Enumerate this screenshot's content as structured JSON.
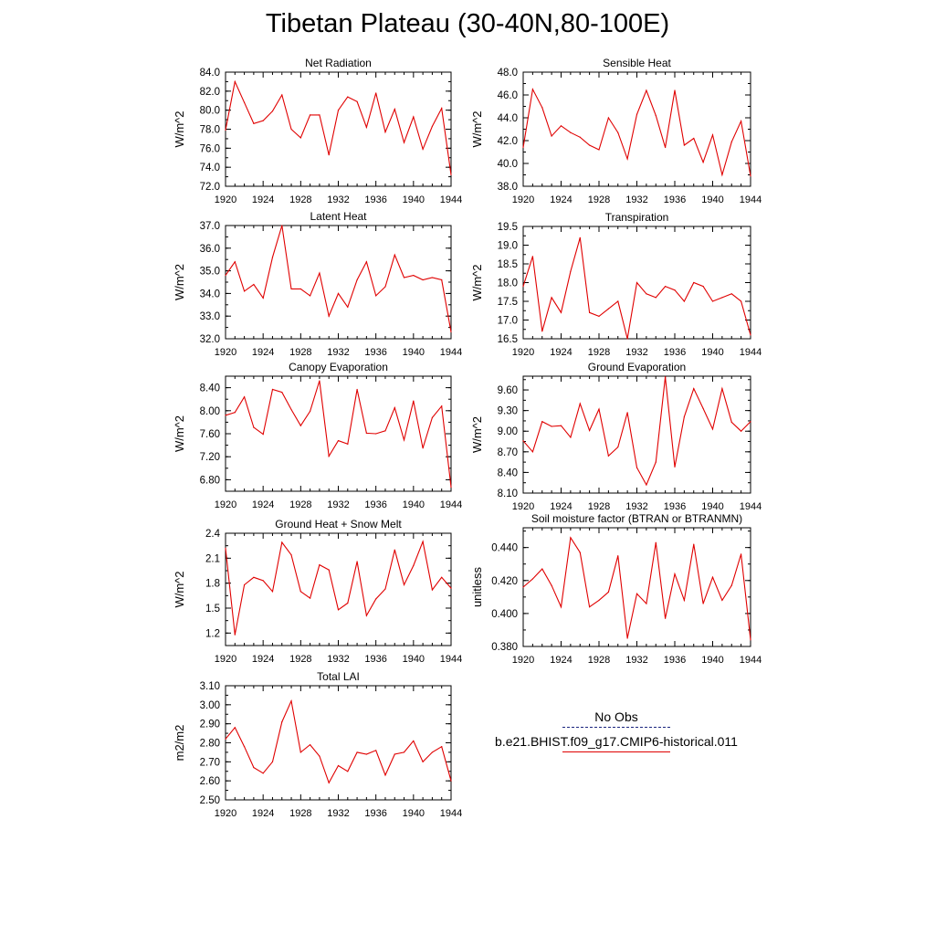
{
  "title": "Tibetan Plateau (30-40N,80-100E)",
  "colors": {
    "model": "#e00000",
    "obs": "#1a237e",
    "axis": "#000000"
  },
  "legend": {
    "obs_label": "No Obs",
    "model_label": "b.e21.BHIST.f09_g17.CMIP6-historical.011"
  },
  "chart_data": [
    {
      "type": "line",
      "title": "Net Radiation",
      "ylabel": "W/m^2",
      "xlim": [
        1920,
        1944
      ],
      "ylim": [
        72.0,
        84.0
      ],
      "xticks": [
        1920,
        1924,
        1928,
        1932,
        1936,
        1940,
        1944
      ],
      "yticks": [
        "72.0",
        "74.0",
        "76.0",
        "78.0",
        "80.0",
        "82.0",
        "84.0"
      ],
      "series": [
        {
          "x": [
            1920,
            1921,
            1922,
            1923,
            1924,
            1925,
            1926,
            1927,
            1928,
            1929,
            1930,
            1931,
            1932,
            1933,
            1934,
            1935,
            1936,
            1937,
            1938,
            1939,
            1940,
            1941,
            1942,
            1943,
            1944
          ],
          "values": [
            77.9,
            83.0,
            80.8,
            78.6,
            78.9,
            79.9,
            81.6,
            78.0,
            77.1,
            79.5,
            79.5,
            75.3,
            80.0,
            81.4,
            80.9,
            78.2,
            81.8,
            77.7,
            80.1,
            76.6,
            79.3,
            75.9,
            78.3,
            80.2,
            73.2
          ]
        }
      ]
    },
    {
      "type": "line",
      "title": "Sensible Heat",
      "ylabel": "W/m^2",
      "xlim": [
        1920,
        1944
      ],
      "ylim": [
        38.0,
        48.0
      ],
      "xticks": [
        1920,
        1924,
        1928,
        1932,
        1936,
        1940,
        1944
      ],
      "yticks": [
        "38.0",
        "40.0",
        "42.0",
        "44.0",
        "46.0",
        "48.0"
      ],
      "series": [
        {
          "x": [
            1920,
            1921,
            1922,
            1923,
            1924,
            1925,
            1926,
            1927,
            1928,
            1929,
            1930,
            1931,
            1932,
            1933,
            1934,
            1935,
            1936,
            1937,
            1938,
            1939,
            1940,
            1941,
            1942,
            1943,
            1944
          ],
          "values": [
            41.4,
            46.5,
            44.9,
            42.4,
            43.3,
            42.7,
            42.3,
            41.6,
            41.2,
            44.0,
            42.7,
            40.4,
            44.3,
            46.4,
            44.2,
            41.4,
            46.4,
            41.6,
            42.2,
            40.1,
            42.5,
            39.0,
            41.9,
            43.7,
            38.9
          ]
        }
      ]
    },
    {
      "type": "line",
      "title": "Latent Heat",
      "ylabel": "W/m^2",
      "xlim": [
        1920,
        1944
      ],
      "ylim": [
        32.0,
        37.0
      ],
      "xticks": [
        1920,
        1924,
        1928,
        1932,
        1936,
        1940,
        1944
      ],
      "yticks": [
        "32.0",
        "33.0",
        "34.0",
        "35.0",
        "36.0",
        "37.0"
      ],
      "series": [
        {
          "x": [
            1920,
            1921,
            1922,
            1923,
            1924,
            1925,
            1926,
            1927,
            1928,
            1929,
            1930,
            1931,
            1932,
            1933,
            1934,
            1935,
            1936,
            1937,
            1938,
            1939,
            1940,
            1941,
            1942,
            1943,
            1944
          ],
          "values": [
            34.8,
            35.4,
            34.1,
            34.4,
            33.8,
            35.6,
            37.0,
            34.2,
            34.2,
            33.9,
            34.9,
            33.0,
            34.0,
            33.4,
            34.6,
            35.4,
            33.9,
            34.3,
            35.7,
            34.7,
            34.8,
            34.6,
            34.7,
            34.6,
            32.3
          ]
        }
      ]
    },
    {
      "type": "line",
      "title": "Transpiration",
      "ylabel": "W/m^2",
      "xlim": [
        1920,
        1944
      ],
      "ylim": [
        16.5,
        19.5
      ],
      "xticks": [
        1920,
        1924,
        1928,
        1932,
        1936,
        1940,
        1944
      ],
      "yticks": [
        "16.5",
        "17.0",
        "17.5",
        "18.0",
        "18.5",
        "19.0",
        "19.5"
      ],
      "series": [
        {
          "x": [
            1920,
            1921,
            1922,
            1923,
            1924,
            1925,
            1926,
            1927,
            1928,
            1929,
            1930,
            1931,
            1932,
            1933,
            1934,
            1935,
            1936,
            1937,
            1938,
            1939,
            1940,
            1941,
            1942,
            1943,
            1944
          ],
          "values": [
            17.9,
            18.7,
            16.7,
            17.6,
            17.2,
            18.3,
            19.2,
            17.2,
            17.1,
            17.3,
            17.5,
            16.5,
            18.0,
            17.7,
            17.6,
            17.9,
            17.8,
            17.5,
            18.0,
            17.9,
            17.5,
            17.6,
            17.7,
            17.5,
            16.6
          ]
        }
      ]
    },
    {
      "type": "line",
      "title": "Canopy Evaporation",
      "ylabel": "W/m^2",
      "xlim": [
        1920,
        1944
      ],
      "ylim": [
        6.6,
        8.6
      ],
      "xticks": [
        1920,
        1924,
        1928,
        1932,
        1936,
        1940,
        1944
      ],
      "yticks": [
        "6.80",
        "7.20",
        "7.60",
        "8.00",
        "8.40"
      ],
      "series": [
        {
          "x": [
            1920,
            1921,
            1922,
            1923,
            1924,
            1925,
            1926,
            1927,
            1928,
            1929,
            1930,
            1931,
            1932,
            1933,
            1934,
            1935,
            1936,
            1937,
            1938,
            1939,
            1940,
            1941,
            1942,
            1943,
            1944
          ],
          "values": [
            7.92,
            7.97,
            8.24,
            7.71,
            7.59,
            8.37,
            8.32,
            8.02,
            7.74,
            7.99,
            8.52,
            7.21,
            7.48,
            7.42,
            8.37,
            7.61,
            7.6,
            7.65,
            8.05,
            7.49,
            8.17,
            7.35,
            7.88,
            8.08,
            6.67
          ]
        }
      ]
    },
    {
      "type": "line",
      "title": "Ground Evaporation",
      "ylabel": "W/m^2",
      "xlim": [
        1920,
        1944
      ],
      "ylim": [
        8.1,
        9.8
      ],
      "xticks": [
        1920,
        1924,
        1928,
        1932,
        1936,
        1940,
        1944
      ],
      "yticks": [
        "8.10",
        "8.40",
        "8.70",
        "9.00",
        "9.30",
        "9.60"
      ],
      "series": [
        {
          "x": [
            1920,
            1921,
            1922,
            1923,
            1924,
            1925,
            1926,
            1927,
            1928,
            1929,
            1930,
            1931,
            1932,
            1933,
            1934,
            1935,
            1936,
            1937,
            1938,
            1939,
            1940,
            1941,
            1942,
            1943,
            1944
          ],
          "values": [
            8.86,
            8.7,
            9.14,
            9.07,
            9.08,
            8.91,
            9.4,
            9.01,
            9.32,
            8.64,
            8.77,
            9.27,
            8.47,
            8.22,
            8.55,
            9.79,
            8.48,
            9.21,
            9.62,
            9.33,
            9.03,
            9.62,
            9.13,
            9.0,
            9.14
          ]
        }
      ]
    },
    {
      "type": "line",
      "title": "Ground Heat + Snow Melt",
      "ylabel": "W/m^2",
      "xlim": [
        1920,
        1944
      ],
      "ylim": [
        1.05,
        2.4
      ],
      "xticks": [
        1920,
        1924,
        1928,
        1932,
        1936,
        1940,
        1944
      ],
      "yticks": [
        "1.2",
        "1.5",
        "1.8",
        "2.1",
        "2.4"
      ],
      "series": [
        {
          "x": [
            1920,
            1921,
            1922,
            1923,
            1924,
            1925,
            1926,
            1927,
            1928,
            1929,
            1930,
            1931,
            1932,
            1933,
            1934,
            1935,
            1936,
            1937,
            1938,
            1939,
            1940,
            1941,
            1942,
            1943,
            1944
          ],
          "values": [
            2.22,
            1.18,
            1.78,
            1.87,
            1.83,
            1.7,
            2.29,
            2.14,
            1.7,
            1.62,
            2.02,
            1.96,
            1.48,
            1.56,
            2.06,
            1.41,
            1.61,
            1.73,
            2.2,
            1.78,
            2.01,
            2.3,
            1.72,
            1.87,
            1.74
          ]
        }
      ]
    },
    {
      "type": "line",
      "title": "Soil moisture factor (BTRAN or BTRANMN)",
      "ylabel": "unitless",
      "xlim": [
        1920,
        1944
      ],
      "ylim": [
        0.38,
        0.452
      ],
      "xticks": [
        1920,
        1924,
        1928,
        1932,
        1936,
        1940,
        1944
      ],
      "yticks": [
        "0.380",
        "0.400",
        "0.420",
        "0.440"
      ],
      "series": [
        {
          "x": [
            1920,
            1921,
            1922,
            1923,
            1924,
            1925,
            1926,
            1927,
            1928,
            1929,
            1930,
            1931,
            1932,
            1933,
            1934,
            1935,
            1936,
            1937,
            1938,
            1939,
            1940,
            1941,
            1942,
            1943,
            1944
          ],
          "values": [
            0.416,
            0.421,
            0.427,
            0.417,
            0.404,
            0.446,
            0.437,
            0.404,
            0.408,
            0.413,
            0.435,
            0.385,
            0.412,
            0.406,
            0.443,
            0.397,
            0.424,
            0.408,
            0.442,
            0.406,
            0.422,
            0.408,
            0.417,
            0.436,
            0.384
          ]
        }
      ]
    },
    {
      "type": "line",
      "title": "Total LAI",
      "ylabel": "m2/m2",
      "xlim": [
        1920,
        1944
      ],
      "ylim": [
        2.5,
        3.1
      ],
      "xticks": [
        1920,
        1924,
        1928,
        1932,
        1936,
        1940,
        1944
      ],
      "yticks": [
        "2.50",
        "2.60",
        "2.70",
        "2.80",
        "2.90",
        "3.00",
        "3.10"
      ],
      "series": [
        {
          "x": [
            1920,
            1921,
            1922,
            1923,
            1924,
            1925,
            1926,
            1927,
            1928,
            1929,
            1930,
            1931,
            1932,
            1933,
            1934,
            1935,
            1936,
            1937,
            1938,
            1939,
            1940,
            1941,
            1942,
            1943,
            1944
          ],
          "values": [
            2.82,
            2.88,
            2.78,
            2.67,
            2.64,
            2.7,
            2.91,
            3.02,
            2.75,
            2.79,
            2.73,
            2.59,
            2.68,
            2.65,
            2.75,
            2.74,
            2.76,
            2.63,
            2.74,
            2.75,
            2.81,
            2.7,
            2.75,
            2.78,
            2.6
          ]
        }
      ]
    }
  ]
}
